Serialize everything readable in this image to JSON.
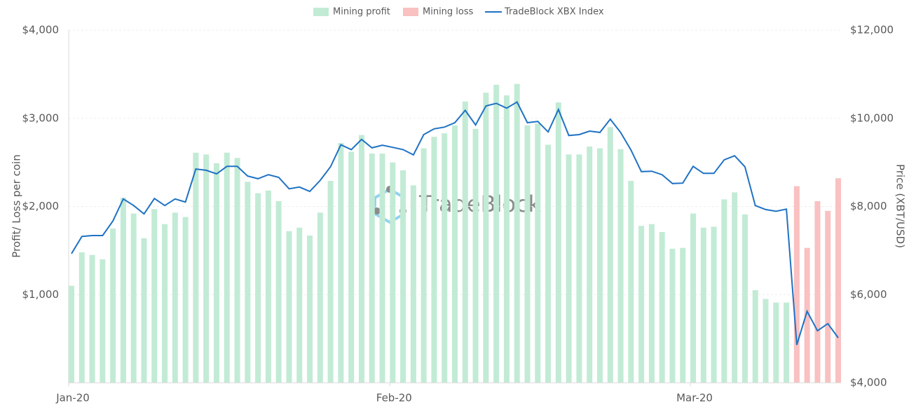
{
  "chart_data": {
    "type": "bar-line",
    "watermark": "TradeBlock",
    "ylabel": "Profit/ Loss per coin",
    "y2label": "Price (XBT/USD)",
    "categories": [
      "Jan-20",
      null,
      null,
      null,
      null,
      null,
      null,
      null,
      null,
      null,
      null,
      null,
      null,
      null,
      null,
      null,
      null,
      null,
      null,
      null,
      null,
      null,
      null,
      null,
      null,
      null,
      null,
      null,
      null,
      null,
      null,
      "Feb-20",
      null,
      null,
      null,
      null,
      null,
      null,
      null,
      null,
      null,
      null,
      null,
      null,
      null,
      null,
      null,
      null,
      null,
      null,
      null,
      null,
      null,
      null,
      null,
      null,
      null,
      null,
      null,
      null,
      "Mar-20",
      null,
      null,
      null,
      null,
      null,
      null,
      null,
      null,
      null,
      null,
      null,
      null,
      null,
      null
    ],
    "series": [
      {
        "name": "Mining profit",
        "type": "bar",
        "color": "#c2ebd5",
        "values": [
          1100,
          1480,
          1450,
          1400,
          1750,
          2100,
          1920,
          1640,
          1970,
          1800,
          1930,
          1880,
          2610,
          2590,
          2490,
          2610,
          2550,
          2280,
          2150,
          2180,
          2060,
          1720,
          1760,
          1670,
          1930,
          2290,
          2720,
          2620,
          2810,
          2600,
          2600,
          2500,
          2410,
          2240,
          2660,
          2790,
          2830,
          2920,
          3190,
          2880,
          3290,
          3380,
          3260,
          3390,
          2920,
          2940,
          2700,
          3180,
          2590,
          2590,
          2680,
          2660,
          2900,
          2650,
          2290,
          1780,
          1800,
          1710,
          1520,
          1530,
          1920,
          1760,
          1770,
          2080,
          2160,
          1910,
          1050,
          950,
          910,
          910,
          null,
          null,
          null,
          null,
          null
        ]
      },
      {
        "name": "Mining loss",
        "type": "bar",
        "color": "#f9c1c1",
        "values": [
          null,
          null,
          null,
          null,
          null,
          null,
          null,
          null,
          null,
          null,
          null,
          null,
          null,
          null,
          null,
          null,
          null,
          null,
          null,
          null,
          null,
          null,
          null,
          null,
          null,
          null,
          null,
          null,
          null,
          null,
          null,
          null,
          null,
          null,
          null,
          null,
          null,
          null,
          null,
          null,
          null,
          null,
          null,
          null,
          null,
          null,
          null,
          null,
          null,
          null,
          null,
          null,
          null,
          null,
          null,
          null,
          null,
          null,
          null,
          null,
          null,
          null,
          null,
          null,
          null,
          null,
          null,
          null,
          null,
          null,
          2230,
          1530,
          2060,
          1950,
          2320
        ]
      },
      {
        "name": "TradeBlock XBX Index",
        "type": "line",
        "axis": "y2",
        "color": "#1f72c4",
        "values": [
          6930,
          7320,
          7340,
          7340,
          7670,
          8170,
          8020,
          7830,
          8180,
          8020,
          8170,
          8100,
          8850,
          8820,
          8740,
          8910,
          8910,
          8690,
          8630,
          8720,
          8660,
          8400,
          8440,
          8340,
          8590,
          8900,
          9400,
          9290,
          9520,
          9330,
          9390,
          9340,
          9290,
          9170,
          9630,
          9760,
          9800,
          9900,
          10180,
          9850,
          10280,
          10340,
          10230,
          10370,
          9900,
          9930,
          9690,
          10200,
          9610,
          9630,
          9710,
          9680,
          9980,
          9680,
          9280,
          8790,
          8800,
          8720,
          8520,
          8530,
          8910,
          8750,
          8750,
          9060,
          9150,
          8900,
          8020,
          7930,
          7890,
          7940,
          4860,
          5620,
          5180,
          5340,
          5020
        ]
      }
    ],
    "ylim": [
      0,
      4000
    ],
    "yticks": [
      {
        "value": 1000,
        "label": "$1,000"
      },
      {
        "value": 2000,
        "label": "$2,000"
      },
      {
        "value": 3000,
        "label": "$3,000"
      },
      {
        "value": 4000,
        "label": "$4,000"
      }
    ],
    "y2lim": [
      4000,
      12000
    ],
    "y2ticks": [
      {
        "value": 4000,
        "label": "$4,000"
      },
      {
        "value": 6000,
        "label": "$6,000"
      },
      {
        "value": 8000,
        "label": "$8,000"
      },
      {
        "value": 10000,
        "label": "$10,000"
      },
      {
        "value": 12000,
        "label": "$12,000"
      }
    ],
    "grid": true,
    "legend": "top"
  }
}
